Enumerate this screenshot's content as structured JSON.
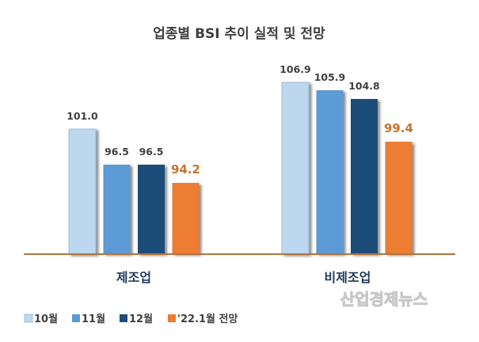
{
  "chart_data": {
    "type": "bar",
    "title": "업종별 BSI 추이 실적 및 전망",
    "categories": [
      "제조업",
      "비제조업"
    ],
    "series": [
      {
        "name": "10월",
        "color": "#bdd7ee",
        "values": [
          101.0,
          106.9
        ],
        "labels": [
          "101.0",
          "106.9"
        ]
      },
      {
        "name": "11월",
        "color": "#5b9bd5",
        "values": [
          96.5,
          105.9
        ],
        "labels": [
          "96.5",
          "105.9"
        ]
      },
      {
        "name": "12월",
        "color": "#1f4e79",
        "values": [
          96.5,
          104.8
        ],
        "labels": [
          "96.5",
          "104.8"
        ]
      },
      {
        "name": "'22.1월 전망",
        "color": "#ed7d31",
        "values": [
          94.2,
          99.4
        ],
        "labels": [
          "94.2",
          "99.4"
        ],
        "highlight": true
      }
    ],
    "xlabel": "",
    "ylabel": "",
    "ylim": [
      85.2,
      110
    ],
    "grid": false,
    "legend": "bottom-left",
    "axis_color": "#b5733f"
  },
  "watermark": "산업경제뉴스"
}
